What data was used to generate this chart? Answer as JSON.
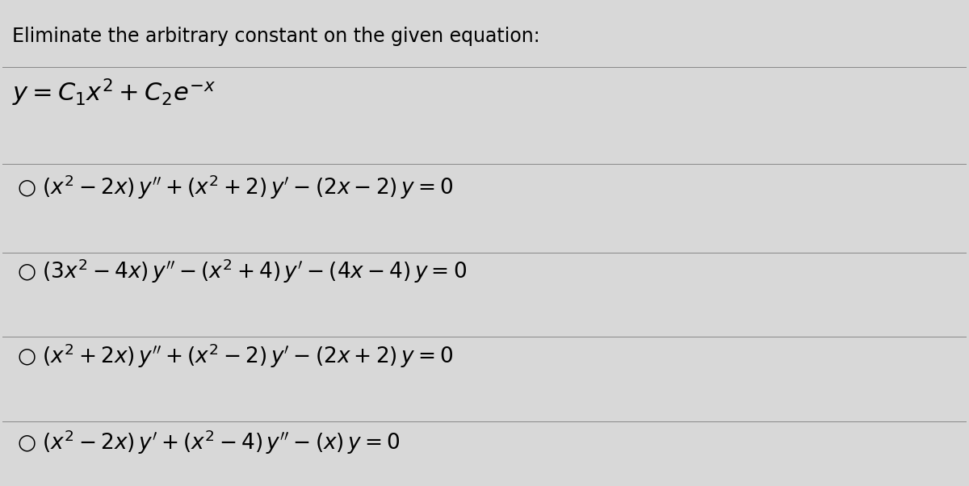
{
  "title": "Eliminate the arbitrary constant on the given equation:",
  "equation": "$y = C_1x^2 + C_2e^{-x}$",
  "options": [
    "$\\bigcirc \\ (x^2 - 2x)\\, y'' + (x^2 + 2)\\, y' - (2x - 2)\\, y = 0$",
    "$\\bigcirc \\ (3x^2 - 4x)\\, y'' - (x^2 + 4)\\, y' - (4x - 4)\\, y = 0$",
    "$\\bigcirc \\ (x^2 + 2x)\\, y'' + (x^2 - 2)\\, y' - (2x + 2)\\, y = 0$",
    "$\\bigcirc \\ (x^2 - 2x)\\, y' + (x^2 - 4)\\, y'' - (x)\\, y = 0$"
  ],
  "bg_color": "#d8d8d8",
  "text_color": "#000000",
  "title_fontsize": 17,
  "eq_fontsize": 22,
  "option_fontsize": 19,
  "fig_width": 12.0,
  "fig_height": 6.02
}
